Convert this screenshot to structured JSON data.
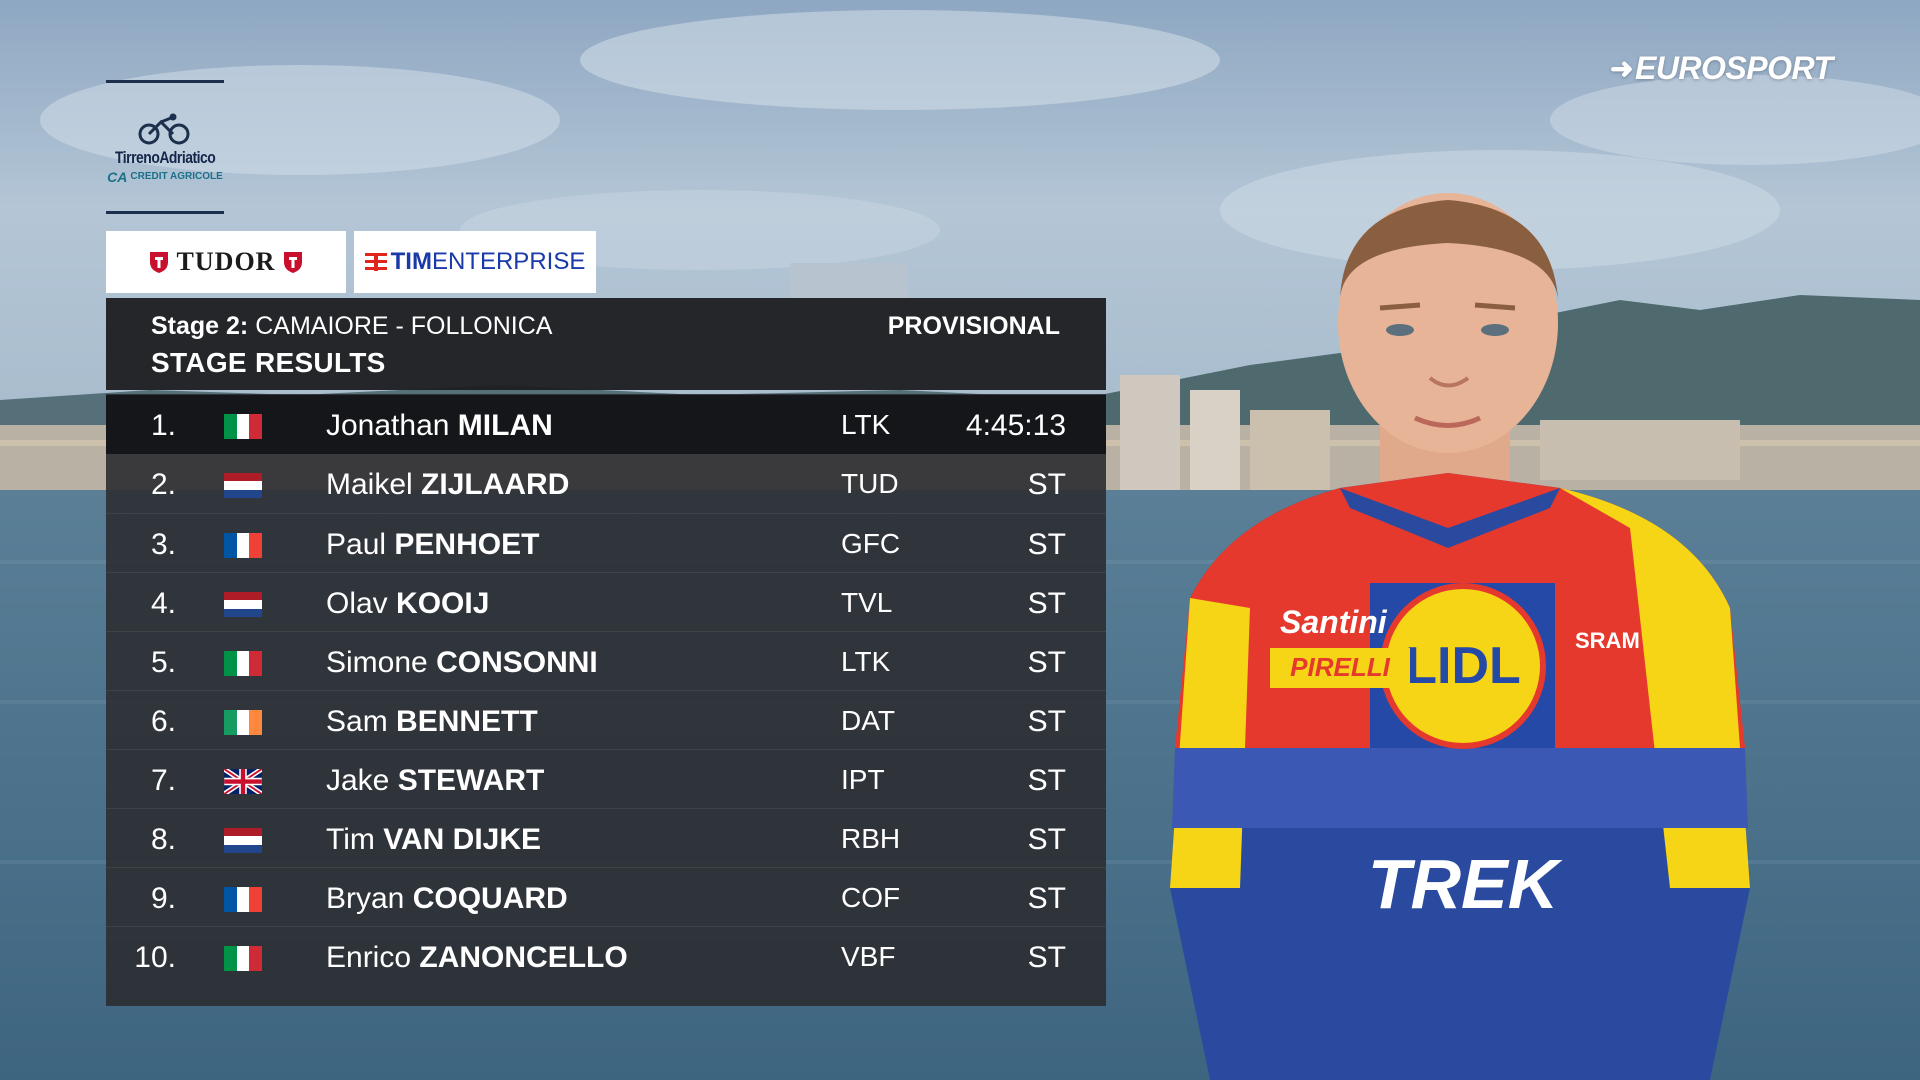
{
  "broadcaster": {
    "logo_text": "EUROSPORT",
    "icon": "eurosport-arrow-icon"
  },
  "race": {
    "name": "TirrenoAdriatico",
    "sponsor": "CREDIT AGRICOLE",
    "sponsor_mark": "CA"
  },
  "sponsors": {
    "tudor": {
      "name": "TUDOR",
      "icon": "tudor-shield-icon"
    },
    "tim": {
      "bold": "TIM",
      "rest": "ENTERPRISE",
      "icon": "tim-logo-icon"
    }
  },
  "results": {
    "stage_label": "Stage 2:",
    "route": "CAMAIORE - FOLLONICA",
    "status": "PROVISIONAL",
    "title": "STAGE RESULTS",
    "rows": [
      {
        "pos": "1.",
        "first": "Jonathan",
        "last": "MILAN",
        "team": "LTK",
        "time": "4:45:13",
        "flag": "it"
      },
      {
        "pos": "2.",
        "first": "Maikel",
        "last": "ZIJLAARD",
        "team": "TUD",
        "time": "ST",
        "flag": "nl"
      },
      {
        "pos": "3.",
        "first": "Paul",
        "last": "PENHOET",
        "team": "GFC",
        "time": "ST",
        "flag": "fr"
      },
      {
        "pos": "4.",
        "first": "Olav",
        "last": "KOOIJ",
        "team": "TVL",
        "time": "ST",
        "flag": "nl"
      },
      {
        "pos": "5.",
        "first": "Simone",
        "last": "CONSONNI",
        "team": "LTK",
        "time": "ST",
        "flag": "it"
      },
      {
        "pos": "6.",
        "first": "Sam",
        "last": "BENNETT",
        "team": "DAT",
        "time": "ST",
        "flag": "ie"
      },
      {
        "pos": "7.",
        "first": "Jake",
        "last": "STEWART",
        "team": "IPT",
        "time": "ST",
        "flag": "gb"
      },
      {
        "pos": "8.",
        "first": "Tim",
        "last": "VAN DIJKE",
        "team": "RBH",
        "time": "ST",
        "flag": "nl"
      },
      {
        "pos": "9.",
        "first": "Bryan",
        "last": "COQUARD",
        "team": "COF",
        "time": "ST",
        "flag": "fr"
      },
      {
        "pos": "10.",
        "first": "Enrico",
        "last": "ZANONCELLO",
        "team": "VBF",
        "time": "ST",
        "flag": "it"
      }
    ]
  },
  "rider_jersey": {
    "front_text": "TREK",
    "logo": "LIDL",
    "sponsor_1": "Santini",
    "sponsor_2": "PIRELLI",
    "sponsor_3": "SRAM"
  },
  "colors": {
    "panel_dark": "#1c1e21",
    "panel_body": "#2c2e32",
    "text": "#ffffff",
    "jersey_red": "#e5392e",
    "jersey_blue": "#2a4aa0",
    "jersey_yellow": "#f6d416"
  }
}
